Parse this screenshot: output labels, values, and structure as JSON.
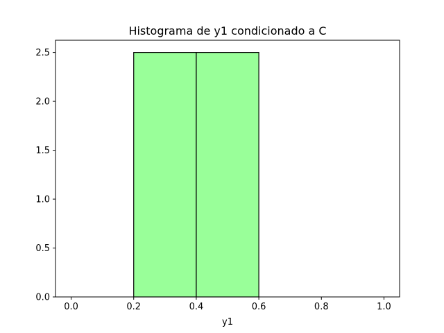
{
  "chart_data": {
    "type": "bar",
    "title": "Histograma de y1 condicionado a C",
    "xlabel": "y1",
    "ylabel": "",
    "xlim": [
      -0.05,
      1.05
    ],
    "ylim": [
      0,
      2.625
    ],
    "xticks": [
      "0.0",
      "0.2",
      "0.4",
      "0.6",
      "0.8",
      "1.0"
    ],
    "yticks": [
      "0.0",
      "0.5",
      "1.0",
      "1.5",
      "2.0",
      "2.5"
    ],
    "bins": [
      {
        "left": 0.2,
        "right": 0.4,
        "value": 2.5
      },
      {
        "left": 0.4,
        "right": 0.6,
        "value": 2.5
      }
    ],
    "bar_color": "#99ff99",
    "edge_color": "#000000",
    "grid": false
  }
}
